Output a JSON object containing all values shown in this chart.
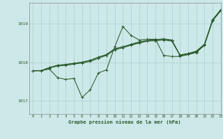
{
  "title": "Graphe pression niveau de la mer (hPa)",
  "background_color": "#cce8e8",
  "grid_color": "#aad0d0",
  "line_color": "#2d5a2d",
  "xlim": [
    -0.5,
    23
  ],
  "ylim": [
    1016.65,
    1019.55
  ],
  "yticks": [
    1017,
    1018,
    1019
  ],
  "xticks": [
    0,
    1,
    2,
    3,
    4,
    5,
    6,
    7,
    8,
    9,
    10,
    11,
    12,
    13,
    14,
    15,
    16,
    17,
    18,
    19,
    20,
    21,
    22,
    23
  ],
  "series1": [
    1017.78,
    1017.78,
    1017.82,
    1017.6,
    1017.55,
    1017.58,
    1017.08,
    1017.28,
    1017.72,
    1017.8,
    1018.4,
    1018.93,
    1018.7,
    1018.58,
    1018.6,
    1018.6,
    1018.18,
    1018.15,
    1018.15,
    1018.2,
    1018.25,
    1018.45,
    1019.1,
    1019.37
  ],
  "series2": [
    1017.78,
    1017.78,
    1017.85,
    1017.9,
    1017.92,
    1017.95,
    1017.98,
    1018.02,
    1018.1,
    1018.18,
    1018.32,
    1018.38,
    1018.44,
    1018.5,
    1018.55,
    1018.56,
    1018.58,
    1018.55,
    1018.18,
    1018.2,
    1018.26,
    1018.44,
    1019.08,
    1019.34
  ],
  "series3": [
    1017.78,
    1017.78,
    1017.86,
    1017.92,
    1017.94,
    1017.97,
    1018.0,
    1018.05,
    1018.13,
    1018.2,
    1018.35,
    1018.4,
    1018.46,
    1018.52,
    1018.56,
    1018.58,
    1018.6,
    1018.57,
    1018.18,
    1018.22,
    1018.28,
    1018.46,
    1019.1,
    1019.36
  ],
  "series4": [
    1017.78,
    1017.78,
    1017.86,
    1017.92,
    1017.94,
    1017.97,
    1018.0,
    1018.05,
    1018.13,
    1018.2,
    1018.35,
    1018.4,
    1018.47,
    1018.53,
    1018.57,
    1018.59,
    1018.61,
    1018.58,
    1018.19,
    1018.23,
    1018.29,
    1018.47,
    1019.11,
    1019.37
  ]
}
